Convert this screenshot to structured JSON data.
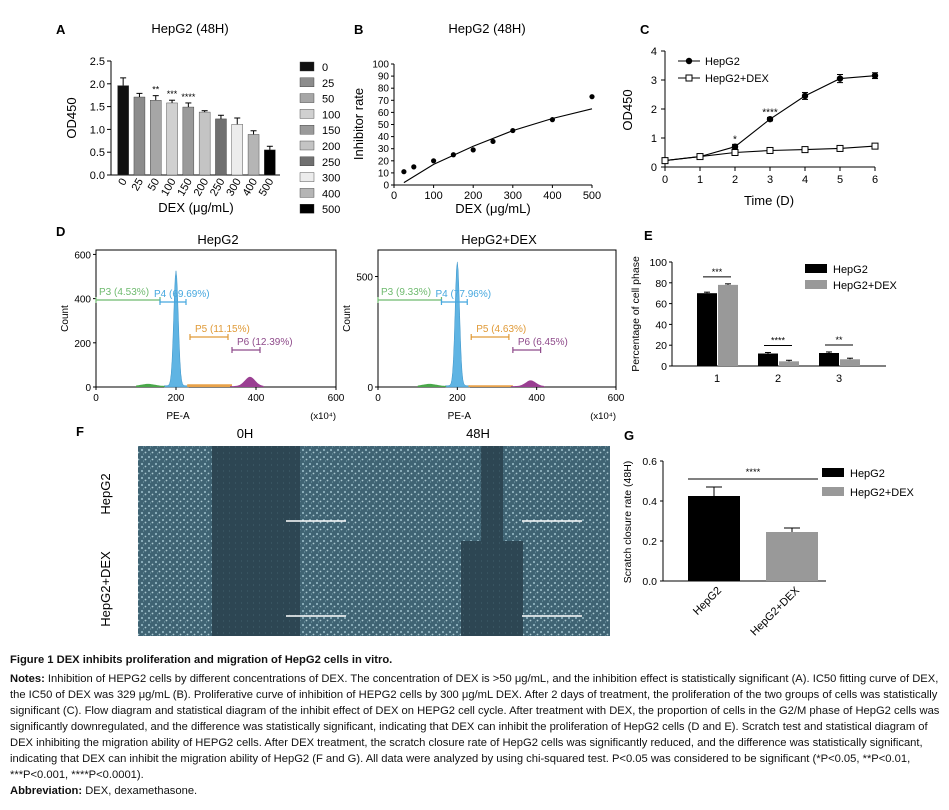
{
  "panel_letters": [
    "A",
    "B",
    "C",
    "D",
    "E",
    "F",
    "G"
  ],
  "colors": {
    "black": "#000000",
    "gray_bar": "#999999",
    "flow_blue": "#5fb4e3",
    "flow_green": "#4aa84a",
    "flow_orange": "#e8a24a",
    "flow_purple": "#9a3f92",
    "gate_green": "#6fba6f",
    "gate_blue": "#46a8df",
    "gate_orange": "#e09a37",
    "gate_purple": "#8e4a8a",
    "micro_bg": "#3d5a68"
  },
  "chart_data": [
    {
      "id": "A",
      "type": "bar",
      "title": "HepG2 (48H)",
      "xlabel": "DEX (μg/mL)",
      "ylabel": "OD450",
      "categories": [
        "0",
        "25",
        "50",
        "100",
        "150",
        "200",
        "250",
        "300",
        "400",
        "500"
      ],
      "values": [
        1.96,
        1.71,
        1.64,
        1.58,
        1.49,
        1.38,
        1.23,
        1.11,
        0.89,
        0.55
      ],
      "errors": [
        0.17,
        0.08,
        0.1,
        0.06,
        0.09,
        0.03,
        0.08,
        0.14,
        0.08,
        0.08
      ],
      "significance": [
        "",
        "",
        "**",
        "***",
        "****",
        "",
        "",
        "",
        "",
        ""
      ],
      "bar_colors": [
        "#111111",
        "#8c8c8c",
        "#a6a6a6",
        "#d0d0d0",
        "#9a9a9a",
        "#c4c4c4",
        "#707070",
        "#ececec",
        "#b5b5b5",
        "#000000"
      ],
      "legend": [
        "0",
        "25",
        "50",
        "100",
        "150",
        "200",
        "250",
        "300",
        "400",
        "500"
      ],
      "ylim": [
        0,
        2.5
      ],
      "yticks": [
        "0.0",
        "0.5",
        "1.0",
        "1.5",
        "2.0",
        "2.5"
      ]
    },
    {
      "id": "B",
      "type": "scatter",
      "title": "HepG2 (48H)",
      "xlabel": "DEX (μg/mL)",
      "ylabel": "Inhibitor rate",
      "x": [
        25,
        50,
        100,
        150,
        200,
        250,
        300,
        400,
        500
      ],
      "y": [
        11,
        15,
        20,
        25,
        29,
        36,
        45,
        54,
        73
      ],
      "fit_x": [
        25,
        100,
        200,
        300,
        400,
        500
      ],
      "fit_y": [
        2,
        17,
        32,
        45,
        55,
        63
      ],
      "xlim": [
        0,
        500
      ],
      "ylim": [
        0,
        100
      ],
      "xticks": [
        "0",
        "100",
        "200",
        "300",
        "400",
        "500"
      ],
      "yticks": [
        "0",
        "10",
        "20",
        "30",
        "40",
        "50",
        "60",
        "70",
        "80",
        "90",
        "100"
      ]
    },
    {
      "id": "C",
      "type": "line",
      "xlabel": "Time (D)",
      "ylabel": "OD450",
      "x": [
        0,
        1,
        2,
        3,
        4,
        5,
        6
      ],
      "series": [
        {
          "name": "HepG2",
          "values": [
            0.22,
            0.36,
            0.7,
            1.65,
            2.45,
            3.05,
            3.15
          ],
          "errors": [
            0.03,
            0.03,
            0.08,
            0.06,
            0.12,
            0.14,
            0.1
          ]
        },
        {
          "name": "HepG2+DEX",
          "values": [
            0.22,
            0.36,
            0.5,
            0.57,
            0.6,
            0.64,
            0.72
          ],
          "errors": [
            0.02,
            0.03,
            0.03,
            0.03,
            0.03,
            0.03,
            0.04
          ]
        }
      ],
      "significance": [
        {
          "x": 2,
          "label": "*"
        },
        {
          "x": 3,
          "label": "****"
        }
      ],
      "xlim": [
        0,
        6
      ],
      "ylim": [
        0,
        4
      ],
      "xticks": [
        "0",
        "1",
        "2",
        "3",
        "4",
        "5",
        "6"
      ],
      "yticks": [
        "0",
        "1",
        "2",
        "3",
        "4"
      ]
    },
    {
      "id": "D1",
      "type": "histogram",
      "title": "HepG2",
      "xlabel": "PE-A",
      "ylabel": "Count",
      "x_unit": "(x10⁴)",
      "xlim": [
        0,
        600
      ],
      "ylim": [
        0,
        620
      ],
      "xticks": [
        "0",
        "200",
        "400",
        "600"
      ],
      "yticks": [
        "0",
        "200",
        "400",
        "600"
      ],
      "gates": [
        {
          "label": "P3 (4.53%)",
          "from": 0,
          "to": 160
        },
        {
          "label": "P4 (69.69%)",
          "from": 160,
          "to": 225
        },
        {
          "label": "P5 (11.15%)",
          "from": 235,
          "to": 330
        },
        {
          "label": "P6 (12.39%)",
          "from": 340,
          "to": 410
        }
      ]
    },
    {
      "id": "D2",
      "type": "histogram",
      "title": "HepG2+DEX",
      "xlabel": "PE-A",
      "ylabel": "Count",
      "x_unit": "(x10⁴)",
      "xlim": [
        0,
        600
      ],
      "ylim": [
        0,
        620
      ],
      "xticks": [
        "0",
        "200",
        "400",
        "600"
      ],
      "yticks": [
        "0",
        "500"
      ],
      "gates": [
        {
          "label": "P3 (9.33%)",
          "from": 0,
          "to": 160
        },
        {
          "label": "P4 (77.96%)",
          "from": 160,
          "to": 225
        },
        {
          "label": "P5 (4.63%)",
          "from": 235,
          "to": 330
        },
        {
          "label": "P6 (6.45%)",
          "from": 340,
          "to": 410
        }
      ]
    },
    {
      "id": "E",
      "type": "bar",
      "ylabel": "Percentage of cell phase",
      "categories": [
        "1",
        "2",
        "3"
      ],
      "series": [
        {
          "name": "HepG2",
          "values": [
            70,
            12,
            12.5
          ]
        },
        {
          "name": "HepG2+DEX",
          "values": [
            78,
            4.5,
            6.5
          ]
        }
      ],
      "significance": [
        "***",
        "****",
        "**"
      ],
      "ylim": [
        0,
        100
      ],
      "yticks": [
        "0",
        "20",
        "40",
        "60",
        "80",
        "100"
      ]
    },
    {
      "id": "G",
      "type": "bar",
      "ylabel": "Scratch closure rate (48H)",
      "categories": [
        "HepG2",
        "HepG2+DEX"
      ],
      "values": [
        0.425,
        0.245
      ],
      "errors": [
        0.045,
        0.02
      ],
      "significance": "****",
      "legend": [
        "HepG2",
        "HepG2+DEX"
      ],
      "ylim": [
        0,
        0.6
      ],
      "yticks": [
        "0.0",
        "0.2",
        "0.4",
        "0.6"
      ]
    }
  ],
  "panel_F": {
    "columns": [
      "0H",
      "48H"
    ],
    "rows": [
      "HepG2",
      "HepG2+DEX"
    ]
  },
  "caption": {
    "title": "Figure 1 DEX inhibits proliferation and migration of HepG2 cells in vitro.",
    "notes_label": "Notes:",
    "notes_text": " Inhibition of HEPG2 cells by different concentrations of DEX. The concentration of DEX is >50 μg/mL, and the inhibition effect is statistically significant (A). IC50 fitting curve of DEX, the IC50 of DEX was 329 μg/mL (B). Proliferative curve of inhibition of HEPG2 cells by 300 μg/mL DEX. After 2 days of treatment, the proliferation of the two groups of cells was statistically significant (C). Flow diagram and statistical diagram of the inhibit effect of DEX on HEPG2 cell cycle. After treatment with DEX, the proportion of cells in the G2/M phase of HepG2 cells was significantly downregulated, and the difference was statistically significant, indicating that DEX can inhibit the proliferation of HepG2 cells (D and E). Scratch test and statistical diagram of DEX inhibiting the migration ability of HEPG2 cells. After DEX treatment, the scratch closure rate of HepG2 cells was significantly reduced, and the difference was statistically significant, indicating that DEX can inhibit the migration ability of HepG2 (F and G). All data were analyzed by using chi-squared test. P<0.05 was considered to be significant (*P<0.05, **P<0.01, ***P<0.001, ****P<0.0001).",
    "abbrev_label": "Abbreviation:",
    "abbrev_text": " DEX, dexamethasone."
  }
}
